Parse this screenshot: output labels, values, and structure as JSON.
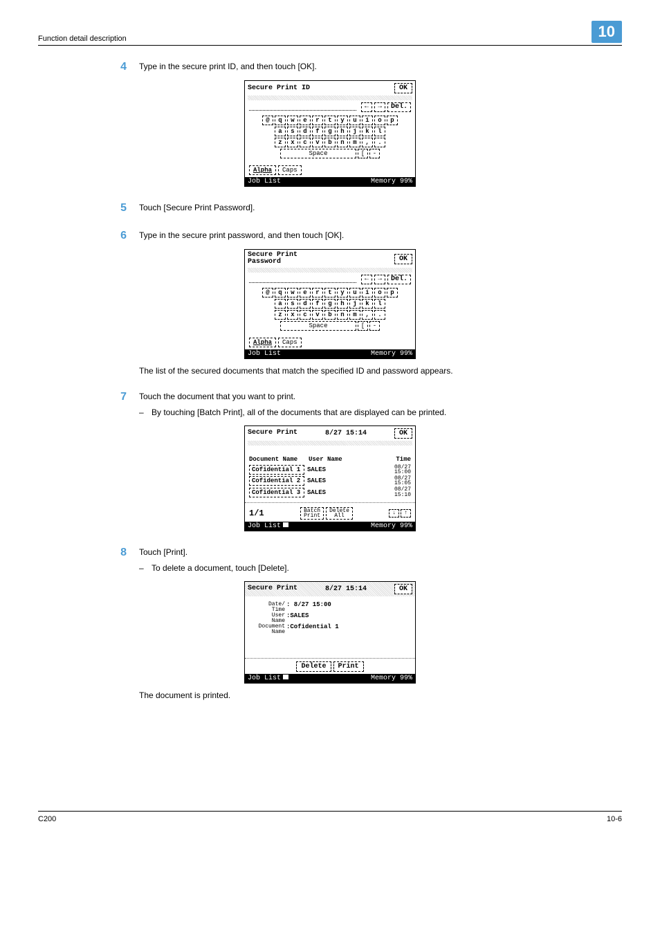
{
  "page": {
    "breadcrumb": "Function detail description",
    "chapter": "10",
    "footer_left": "C200",
    "footer_right": "10-6"
  },
  "steps": {
    "s4": {
      "num": "4",
      "text": "Type in the secure print ID, and then touch [OK]."
    },
    "s5": {
      "num": "5",
      "text": "Touch [Secure Print Password]."
    },
    "s6": {
      "num": "6",
      "text": "Type in the secure print password, and then touch [OK]."
    },
    "s6_note": "The list of the secured documents that match the specified ID and password appears.",
    "s7": {
      "num": "7",
      "text": "Touch the document that you want to print.",
      "bullet": "By touching [Batch Print], all of the documents that are displayed can be printed."
    },
    "s8": {
      "num": "8",
      "text": "Touch [Print].",
      "bullet": "To delete a document, touch [Delete]."
    },
    "s8_after": "The document is printed."
  },
  "lcd_common": {
    "ok": "OK",
    "del": "Del.",
    "arrow_left": "←",
    "arrow_right": "→",
    "alpha": "Alpha",
    "caps": "Caps",
    "job_list": "Job List",
    "memory": "Memory 99%",
    "space": "Space"
  },
  "kb": {
    "r1": [
      "@",
      "q",
      "w",
      "e",
      "r",
      "t",
      "y",
      "u",
      "i",
      "o",
      "p"
    ],
    "r2": [
      "a",
      "s",
      "d",
      "f",
      "g",
      "h",
      "j",
      "k",
      "l"
    ],
    "r3": [
      "z",
      "x",
      "c",
      "v",
      "b",
      "n",
      "m",
      ",",
      "."
    ],
    "r4_extra": [
      "[",
      "-"
    ]
  },
  "lcd1": {
    "title": "Secure Print ID"
  },
  "lcd2": {
    "title": "Secure Print\nPassword"
  },
  "lcd3": {
    "title": "Secure Print",
    "timestamp": "8/27 15:14",
    "col_name": "Document Name",
    "col_user": "User Name",
    "col_time": "Time",
    "rows": [
      {
        "name": "Cofidential 1",
        "user": "SALES",
        "time": "08/27\n15:00"
      },
      {
        "name": "Cofidential 2",
        "user": "SALES",
        "time": "08/27\n15:05"
      },
      {
        "name": "Cofidential 3",
        "user": "SALES",
        "time": "08/27\n15:10"
      }
    ],
    "page": "1/1",
    "batch": "Batch\nPrint",
    "delete_all": "Delete\nAll",
    "down": "↓",
    "up": "↑"
  },
  "lcd4": {
    "title": "Secure Print",
    "timestamp": "8/27 15:14",
    "date_label": "Date/\nTime",
    "date_val": ": 8/27  15:00",
    "user_label": "User\nName",
    "user_val": ":SALES",
    "doc_label": "Document\nName",
    "doc_val": ":Cofidential 1",
    "delete": "Delete",
    "print": "Print"
  }
}
